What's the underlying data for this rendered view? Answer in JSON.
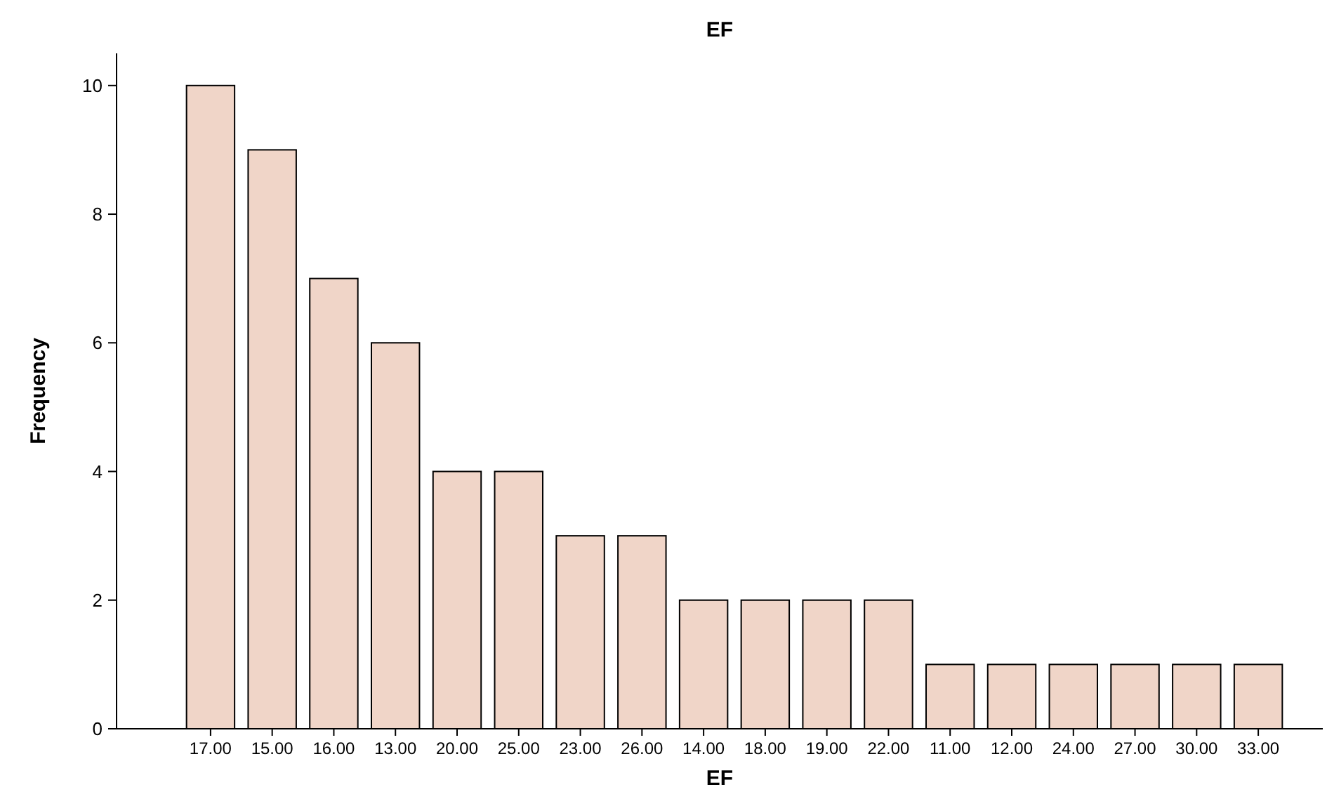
{
  "chart_data": {
    "type": "bar",
    "title": "EF",
    "xlabel": "EF",
    "ylabel": "Frequency",
    "categories": [
      "17.00",
      "15.00",
      "16.00",
      "13.00",
      "20.00",
      "25.00",
      "23.00",
      "26.00",
      "14.00",
      "18.00",
      "19.00",
      "22.00",
      "11.00",
      "12.00",
      "24.00",
      "27.00",
      "30.00",
      "33.00"
    ],
    "values": [
      10,
      9,
      7,
      6,
      4,
      4,
      3,
      3,
      2,
      2,
      2,
      2,
      1,
      1,
      1,
      1,
      1,
      1
    ],
    "color": "#f0d5c8",
    "ylim": [
      0,
      10.5
    ],
    "yticks": [
      0,
      2,
      4,
      6,
      8,
      10
    ],
    "grid": false
  }
}
